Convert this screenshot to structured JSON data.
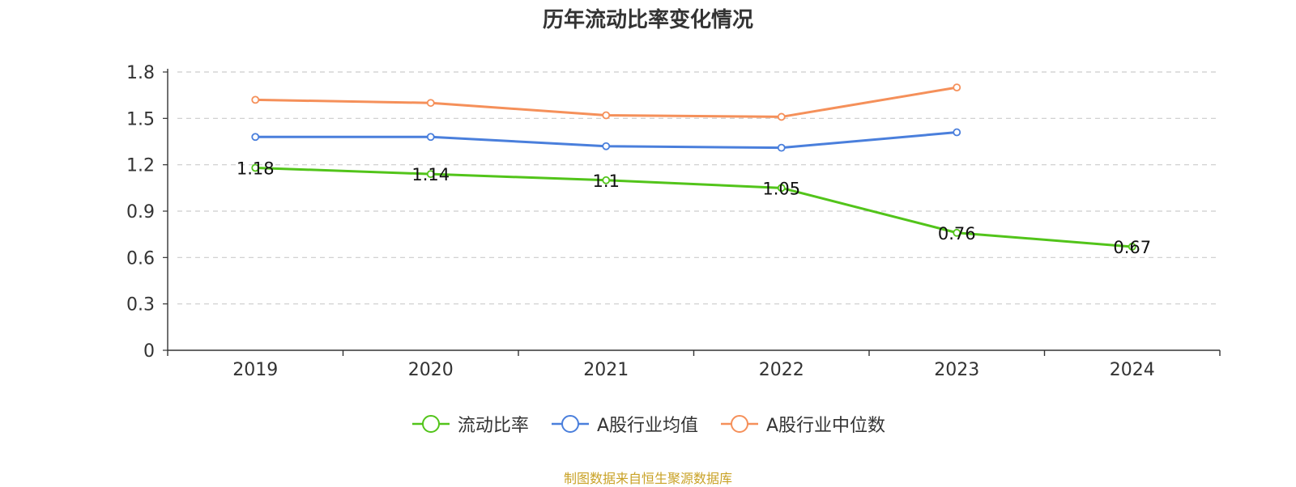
{
  "chart_data": {
    "type": "line",
    "title": "历年流动比率变化情况",
    "x": [
      "2019",
      "2020",
      "2021",
      "2022",
      "2023",
      "2024"
    ],
    "ylim": [
      0,
      1.8
    ],
    "yticks": [
      "0",
      "0.3",
      "0.6",
      "0.9",
      "1.2",
      "1.5",
      "1.8"
    ],
    "grid": true,
    "legend_position": "bottom",
    "series": [
      {
        "name": "流动比率",
        "color": "#52c41a",
        "values": [
          1.18,
          1.14,
          1.1,
          1.05,
          0.76,
          0.67
        ],
        "labels": [
          "1.18",
          "1.14",
          "1.1",
          "1.05",
          "0.76",
          "0.67"
        ],
        "show_labels": true
      },
      {
        "name": "A股行业均值",
        "color": "#4a7fdc",
        "values": [
          1.38,
          1.38,
          1.32,
          1.31,
          1.41,
          null
        ],
        "show_labels": false
      },
      {
        "name": "A股行业中位数",
        "color": "#f5905a",
        "values": [
          1.62,
          1.6,
          1.52,
          1.51,
          1.7,
          null
        ],
        "show_labels": false
      }
    ]
  },
  "footer": {
    "source": "制图数据来自恒生聚源数据库"
  }
}
